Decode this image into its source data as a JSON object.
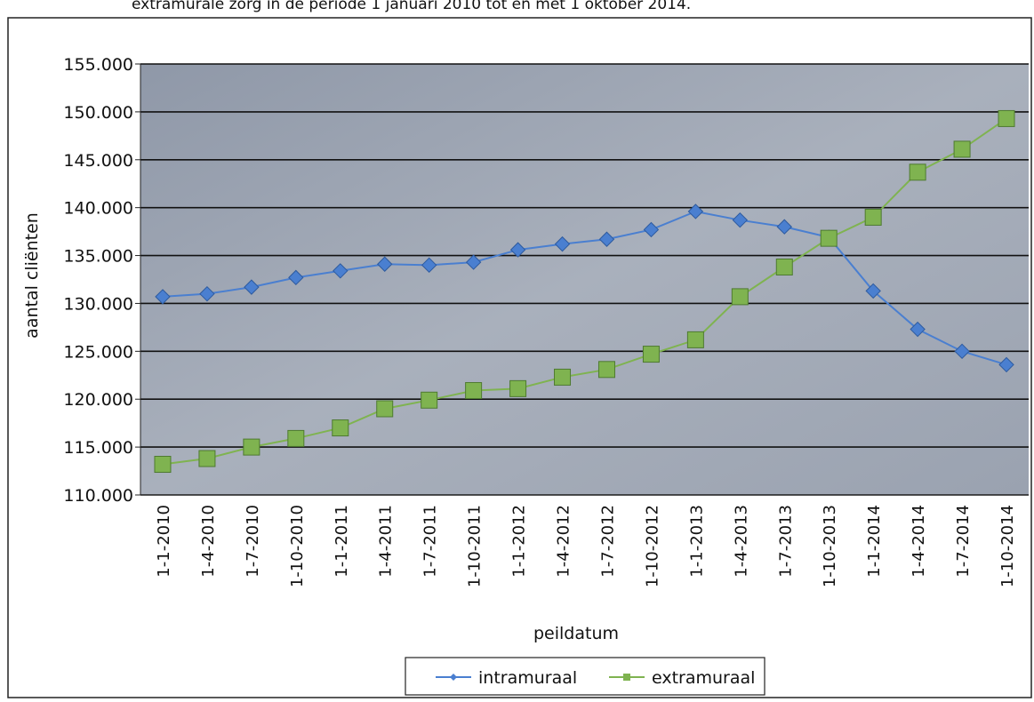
{
  "chart_data": {
    "type": "line",
    "title": "extramurale zorg in de periode 1 januari 2010 tot en met 1 oktober 2014.",
    "x_label": "peildatum",
    "y_label": "aantal cliënten",
    "categories": [
      "1-1-2010",
      "1-4-2010",
      "1-7-2010",
      "1-10-2010",
      "1-1-2011",
      "1-4-2011",
      "1-7-2011",
      "1-10-2011",
      "1-1-2012",
      "1-4-2012",
      "1-7-2012",
      "1-10-2012",
      "1-1-2013",
      "1-4-2013",
      "1-7-2013",
      "1-10-2013",
      "1-1-2014",
      "1-4-2014",
      "1-7-2014",
      "1-10-2014"
    ],
    "series": [
      {
        "name": "intramuraal",
        "color": "#4a7fd0",
        "marker": "diamond",
        "values": [
          130700,
          131000,
          131700,
          132700,
          133400,
          134100,
          134000,
          134300,
          135600,
          136200,
          136700,
          137700,
          139600,
          138700,
          138000,
          136900,
          131300,
          127300,
          125000,
          123600
        ]
      },
      {
        "name": "extramuraal",
        "color": "#7fb350",
        "marker": "square",
        "values": [
          113200,
          113800,
          115000,
          115900,
          117000,
          119000,
          119900,
          120900,
          121100,
          122300,
          123100,
          124700,
          126200,
          130700,
          133800,
          136800,
          139000,
          143700,
          146100,
          149300
        ]
      }
    ],
    "ylim": [
      110000,
      155000
    ],
    "yticks": [
      {
        "value": 110000,
        "label": "110.000"
      },
      {
        "value": 115000,
        "label": "115.000"
      },
      {
        "value": 120000,
        "label": "120.000"
      },
      {
        "value": 125000,
        "label": "125.000"
      },
      {
        "value": 130000,
        "label": "130.000"
      },
      {
        "value": 135000,
        "label": "135.000"
      },
      {
        "value": 140000,
        "label": "140.000"
      },
      {
        "value": 145000,
        "label": "145.000"
      },
      {
        "value": 150000,
        "label": "150.000"
      },
      {
        "value": 155000,
        "label": "155.000"
      }
    ],
    "grid": true,
    "legend": "bottom"
  }
}
